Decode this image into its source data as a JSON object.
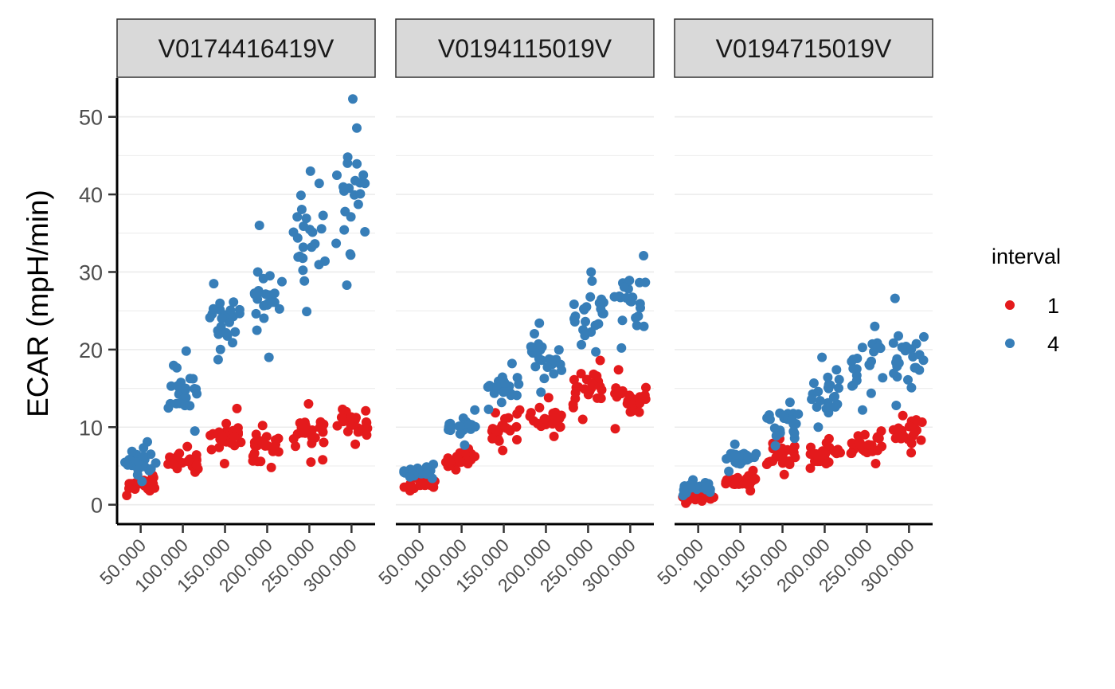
{
  "chart_data": {
    "type": "scatter",
    "facets": [
      "V0174416419V",
      "V0194115019V",
      "V0194715019V"
    ],
    "ylabel": "ECAR (mpH/min)",
    "xlabel": "",
    "ylim": [
      -2.5,
      55
    ],
    "xlim": [
      22000,
      328000
    ],
    "yticks": [
      0,
      10,
      20,
      30,
      40,
      50
    ],
    "ytick_labels": [
      "0",
      "10",
      "20",
      "30",
      "40",
      "50"
    ],
    "xticks": [
      50000,
      100000,
      150000,
      200000,
      250000,
      300000
    ],
    "xtick_labels": [
      "50.000",
      "100.000",
      "150.000",
      "200.000",
      "250.000",
      "300.000"
    ],
    "legend": {
      "title": "interval",
      "position": "right",
      "entries": [
        {
          "name": "1",
          "color": "#E41A1C"
        },
        {
          "name": "4",
          "color": "#377EB8"
        }
      ]
    },
    "grid": "horizontal major and minor",
    "points_per_cluster": 24,
    "cluster_x_spread": [
      -19000,
      19000
    ],
    "series": [
      {
        "name": "1",
        "color": "#E41A1C",
        "panels": [
          {
            "x": [
              50000,
              100000,
              150000,
              200000,
              250000,
              300000
            ],
            "y_range": [
              [
                1.2,
                3.8
              ],
              [
                4.2,
                7.5
              ],
              [
                5.3,
                12.4
              ],
              [
                4.8,
                10.2
              ],
              [
                5.5,
                13.0
              ],
              [
                7.8,
                12.3
              ]
            ]
          },
          {
            "x": [
              50000,
              100000,
              150000,
              200000,
              250000,
              300000
            ],
            "y_range": [
              [
                1.8,
                3.5
              ],
              [
                4.5,
                7.2
              ],
              [
                7.0,
                12.2
              ],
              [
                8.8,
                13.8
              ],
              [
                11.0,
                18.6
              ],
              [
                9.8,
                17.4
              ]
            ]
          },
          {
            "x": [
              50000,
              100000,
              150000,
              200000,
              250000,
              300000
            ],
            "y_range": [
              [
                0.2,
                1.5
              ],
              [
                1.8,
                4.4
              ],
              [
                3.9,
                8.5
              ],
              [
                4.7,
                8.5
              ],
              [
                5.3,
                9.5
              ],
              [
                6.7,
                11.5
              ]
            ]
          }
        ]
      },
      {
        "name": "4",
        "color": "#377EB8",
        "panels": [
          {
            "x": [
              50000,
              100000,
              150000,
              200000,
              250000,
              300000
            ],
            "y_range": [
              [
                3.0,
                8.1
              ],
              [
                9.5,
                19.8
              ],
              [
                18.7,
                28.5
              ],
              [
                19.0,
                36.0
              ],
              [
                24.9,
                43.0
              ],
              [
                28.3,
                52.3
              ]
            ]
          },
          {
            "x": [
              50000,
              100000,
              150000,
              200000,
              250000,
              300000
            ],
            "y_range": [
              [
                3.4,
                5.2
              ],
              [
                7.7,
                12.2
              ],
              [
                12.3,
                18.2
              ],
              [
                14.5,
                23.4
              ],
              [
                19.7,
                30.0
              ],
              [
                20.2,
                32.1
              ]
            ]
          },
          {
            "x": [
              50000,
              100000,
              150000,
              200000,
              250000,
              300000
            ],
            "y_range": [
              [
                1.2,
                3.2
              ],
              [
                4.3,
                7.8
              ],
              [
                7.6,
                13.2
              ],
              [
                10.0,
                19.0
              ],
              [
                12.2,
                23.0
              ],
              [
                12.8,
                26.6
              ]
            ]
          }
        ]
      }
    ]
  }
}
